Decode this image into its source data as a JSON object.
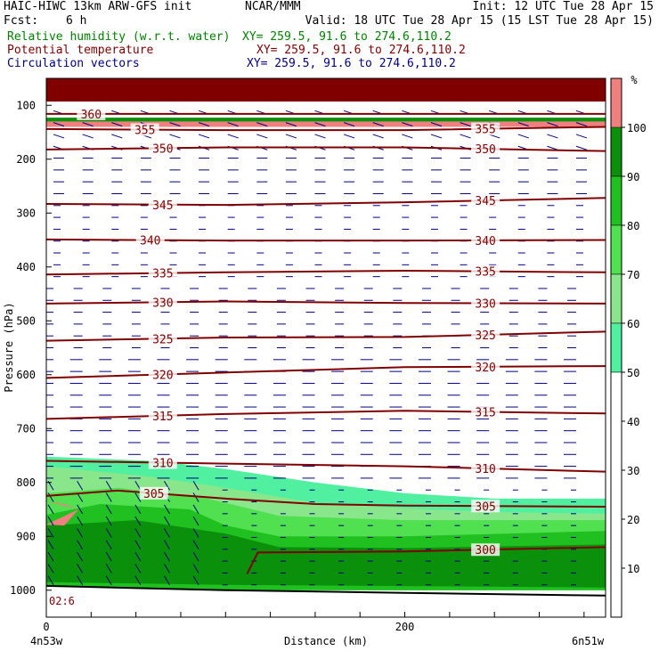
{
  "header": {
    "model_title": "HAIC-HIWC 13km ARW-GFS init",
    "org": "NCAR/MMM",
    "init": "Init: 12 UTC Tue 28 Apr 15",
    "fcst_label": "Fcst:",
    "fcst_value": "6 h",
    "valid": "Valid: 18 UTC Tue 28 Apr 15 (15 LST Tue 28 Apr 15)",
    "fields": [
      {
        "name": "Relative humidity (w.r.t. water)",
        "xy": "XY= 259.5, 91.6 to 274.6,110.2",
        "color": "#008000"
      },
      {
        "name": "Potential temperature",
        "xy": "XY= 259.5, 91.6 to 274.6,110.2",
        "color": "#800000"
      },
      {
        "name": "Circulation vectors",
        "xy": "XY= 259.5, 91.6 to 274.6,110.2",
        "color": "#000080"
      }
    ]
  },
  "chart_data": {
    "type": "cross-section",
    "ylabel": "Pressure (hPa)",
    "xlabel": "Distance (km)",
    "x_start_label": "4n53w",
    "x_end_label": "6n51w",
    "xlim": [
      0,
      312
    ],
    "ylim": [
      1050,
      50
    ],
    "x_ticks": [
      0,
      200
    ],
    "y_ticks": [
      100,
      200,
      300,
      400,
      500,
      600,
      700,
      800,
      900,
      1000
    ],
    "terrain_label": "02:6",
    "colorbar": {
      "unit": "%",
      "levels": [
        10,
        20,
        30,
        40,
        50,
        60,
        70,
        80,
        90,
        100
      ],
      "colors": [
        {
          "from": 0,
          "to": 50,
          "color": "#ffffff"
        },
        {
          "from": 50,
          "to": 60,
          "color": "#50f0a0"
        },
        {
          "from": 60,
          "to": 70,
          "color": "#8ae68a"
        },
        {
          "from": 70,
          "to": 80,
          "color": "#50e050"
        },
        {
          "from": 80,
          "to": 90,
          "color": "#20c020"
        },
        {
          "from": 90,
          "to": 100,
          "color": "#0a900a"
        },
        {
          "from": 100,
          "to": 110,
          "color": "#f08080"
        }
      ],
      "top_color": "#800000"
    },
    "theta_contours": [
      {
        "label": "360",
        "points": [
          [
            0,
            116
          ],
          [
            312,
            116
          ]
        ],
        "labels_at": [
          25
        ]
      },
      {
        "label": "355",
        "points": [
          [
            0,
            144
          ],
          [
            100,
            146
          ],
          [
            200,
            146
          ],
          [
            312,
            140
          ]
        ],
        "labels_at": [
          55,
          245
        ]
      },
      {
        "label": "350",
        "points": [
          [
            0,
            182
          ],
          [
            100,
            178
          ],
          [
            200,
            178
          ],
          [
            312,
            185
          ]
        ],
        "labels_at": [
          65,
          245
        ]
      },
      {
        "label": "345",
        "points": [
          [
            0,
            283
          ],
          [
            100,
            285
          ],
          [
            200,
            280
          ],
          [
            312,
            272
          ]
        ],
        "labels_at": [
          65,
          245
        ]
      },
      {
        "label": "340",
        "points": [
          [
            0,
            349
          ],
          [
            100,
            351
          ],
          [
            200,
            351
          ],
          [
            312,
            350
          ]
        ],
        "labels_at": [
          58,
          245
        ]
      },
      {
        "label": "335",
        "points": [
          [
            0,
            414
          ],
          [
            100,
            410
          ],
          [
            200,
            407
          ],
          [
            312,
            410
          ]
        ],
        "labels_at": [
          65,
          245
        ]
      },
      {
        "label": "330",
        "points": [
          [
            0,
            468
          ],
          [
            100,
            464
          ],
          [
            200,
            467
          ],
          [
            312,
            468
          ]
        ],
        "labels_at": [
          65,
          245
        ]
      },
      {
        "label": "325",
        "points": [
          [
            0,
            537
          ],
          [
            100,
            531
          ],
          [
            200,
            530
          ],
          [
            312,
            520
          ]
        ],
        "labels_at": [
          65,
          245
        ]
      },
      {
        "label": "320",
        "points": [
          [
            0,
            606
          ],
          [
            100,
            596
          ],
          [
            200,
            586
          ],
          [
            312,
            584
          ]
        ],
        "labels_at": [
          65,
          245
        ]
      },
      {
        "label": "315",
        "points": [
          [
            0,
            682
          ],
          [
            100,
            673
          ],
          [
            200,
            667
          ],
          [
            312,
            672
          ]
        ],
        "labels_at": [
          65,
          245
        ]
      },
      {
        "label": "310",
        "points": [
          [
            0,
            760
          ],
          [
            100,
            765
          ],
          [
            200,
            770
          ],
          [
            312,
            780
          ]
        ],
        "labels_at": [
          65,
          245
        ]
      },
      {
        "label": "305",
        "points": [
          [
            0,
            825
          ],
          [
            40,
            815
          ],
          [
            100,
            830
          ],
          [
            150,
            840
          ],
          [
            200,
            843
          ],
          [
            312,
            845
          ]
        ],
        "labels_at": [
          60,
          245
        ]
      },
      {
        "label": "300",
        "points": [
          [
            112,
            970
          ],
          [
            118,
            930
          ],
          [
            200,
            928
          ],
          [
            312,
            920
          ]
        ],
        "labels_at": [
          245
        ]
      }
    ],
    "rh_regions": [
      {
        "level": 100,
        "upper": [
          [
            0,
            124
          ],
          [
            312,
            124
          ]
        ],
        "lower": [
          [
            0,
            140
          ],
          [
            312,
            140
          ]
        ]
      },
      {
        "level": 90,
        "upper": [
          [
            0,
            123
          ],
          [
            312,
            123
          ]
        ],
        "lower": [
          [
            0,
            130
          ],
          [
            312,
            130
          ]
        ]
      },
      {
        "level": 50,
        "upper": [
          [
            0,
            752
          ],
          [
            60,
            760
          ],
          [
            100,
            775
          ],
          [
            150,
            800
          ],
          [
            200,
            820
          ],
          [
            250,
            830
          ],
          [
            312,
            830
          ]
        ],
        "lower": [
          [
            0,
            1000
          ],
          [
            312,
            1000
          ]
        ]
      },
      {
        "level": 60,
        "upper": [
          [
            0,
            770
          ],
          [
            60,
            790
          ],
          [
            100,
            810
          ],
          [
            150,
            838
          ],
          [
            200,
            848
          ],
          [
            250,
            855
          ],
          [
            312,
            858
          ]
        ],
        "lower": [
          [
            0,
            1000
          ],
          [
            312,
            1000
          ]
        ]
      },
      {
        "level": 70,
        "upper": [
          [
            0,
            820
          ],
          [
            40,
            810
          ],
          [
            90,
            830
          ],
          [
            130,
            862
          ],
          [
            200,
            870
          ],
          [
            312,
            870
          ]
        ],
        "lower": [
          [
            0,
            1000
          ],
          [
            312,
            1000
          ]
        ]
      },
      {
        "level": 80,
        "upper": [
          [
            0,
            860
          ],
          [
            30,
            840
          ],
          [
            80,
            850
          ],
          [
            100,
            880
          ],
          [
            130,
            900
          ],
          [
            200,
            900
          ],
          [
            312,
            890
          ]
        ],
        "lower": [
          [
            0,
            1000
          ],
          [
            312,
            1000
          ]
        ]
      },
      {
        "level": 90,
        "upper": [
          [
            0,
            880
          ],
          [
            50,
            870
          ],
          [
            100,
            895
          ],
          [
            130,
            920
          ],
          [
            200,
            922
          ],
          [
            312,
            915
          ]
        ],
        "lower": [
          [
            0,
            985
          ],
          [
            100,
            990
          ],
          [
            312,
            995
          ]
        ]
      },
      {
        "level": 100,
        "upper": [
          [
            0,
            835
          ],
          [
            10,
            840
          ],
          [
            18,
            850
          ]
        ],
        "lower": [
          [
            18,
            850
          ],
          [
            10,
            880
          ],
          [
            0,
            878
          ]
        ]
      }
    ],
    "terrain_pressure": [
      [
        0,
        992
      ],
      [
        100,
        1000
      ],
      [
        200,
        1005
      ],
      [
        312,
        1010
      ]
    ]
  }
}
